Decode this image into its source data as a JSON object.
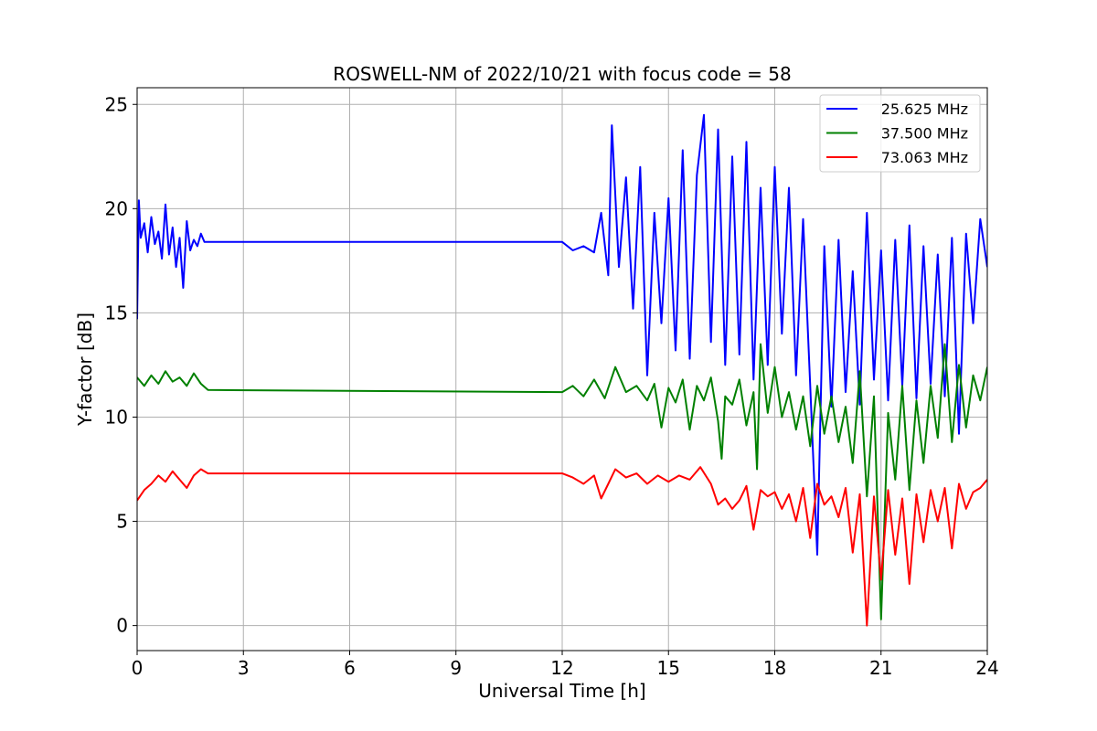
{
  "chart_data": {
    "type": "line",
    "title": "ROSWELL-NM of 2022/10/21 with focus code = 58",
    "xlabel": "Universal Time [h]",
    "ylabel": "Y-factor [dB]",
    "xlim": [
      0,
      24
    ],
    "ylim": [
      -1.2,
      25.8
    ],
    "xticks": [
      0,
      3,
      6,
      9,
      12,
      15,
      18,
      21,
      24
    ],
    "xtick_labels": [
      "0",
      "3",
      "6",
      "9",
      "12",
      "15",
      "18",
      "21",
      "24"
    ],
    "yticks": [
      0,
      5,
      10,
      15,
      20,
      25
    ],
    "ytick_labels": [
      "0",
      "5",
      "10",
      "15",
      "20",
      "25"
    ],
    "grid": true,
    "legend_position": "top-right",
    "series": [
      {
        "name": "25.625 MHz",
        "color": "#0000ff",
        "x": [
          0,
          0.05,
          0.1,
          0.2,
          0.3,
          0.4,
          0.5,
          0.6,
          0.7,
          0.8,
          0.9,
          1.0,
          1.1,
          1.2,
          1.3,
          1.4,
          1.5,
          1.6,
          1.7,
          1.8,
          1.9,
          2.0,
          12.0,
          12.3,
          12.6,
          12.9,
          13.1,
          13.3,
          13.4,
          13.6,
          13.8,
          14.0,
          14.2,
          14.4,
          14.6,
          14.8,
          15.0,
          15.2,
          15.4,
          15.6,
          15.8,
          16.0,
          16.2,
          16.4,
          16.6,
          16.8,
          17.0,
          17.2,
          17.4,
          17.6,
          17.8,
          18.0,
          18.2,
          18.4,
          18.6,
          18.8,
          19.0,
          19.2,
          19.4,
          19.6,
          19.8,
          20.0,
          20.2,
          20.4,
          20.6,
          20.8,
          21.0,
          21.2,
          21.4,
          21.6,
          21.8,
          22.0,
          22.2,
          22.4,
          22.6,
          22.8,
          23.0,
          23.2,
          23.4,
          23.6,
          23.8,
          24.0
        ],
        "y": [
          14.7,
          20.4,
          18.6,
          19.3,
          17.9,
          19.6,
          18.3,
          18.9,
          17.6,
          20.2,
          17.8,
          19.1,
          17.2,
          18.6,
          16.2,
          19.4,
          18.0,
          18.5,
          18.2,
          18.8,
          18.4,
          18.4,
          18.4,
          18.0,
          18.2,
          17.9,
          19.8,
          16.8,
          24.0,
          17.2,
          21.5,
          15.2,
          22.0,
          12.0,
          19.8,
          14.5,
          20.5,
          13.2,
          22.8,
          12.8,
          21.6,
          24.5,
          13.6,
          23.8,
          12.5,
          22.5,
          13.0,
          23.2,
          11.8,
          21.0,
          12.5,
          22.0,
          14.0,
          21.0,
          12.0,
          19.5,
          11.5,
          3.4,
          18.2,
          10.5,
          18.5,
          11.2,
          17.0,
          10.6,
          19.8,
          11.8,
          18.0,
          10.8,
          18.5,
          11.5,
          19.2,
          10.9,
          18.2,
          11.6,
          17.8,
          11.0,
          18.6,
          9.2,
          18.8,
          14.5,
          19.5,
          17.2
        ]
      },
      {
        "name": "37.500 MHz",
        "color": "#008000",
        "x": [
          0,
          0.2,
          0.4,
          0.6,
          0.8,
          1.0,
          1.2,
          1.4,
          1.6,
          1.8,
          2.0,
          12.0,
          12.3,
          12.6,
          12.9,
          13.2,
          13.5,
          13.8,
          14.1,
          14.4,
          14.6,
          14.8,
          15.0,
          15.2,
          15.4,
          15.6,
          15.8,
          16.0,
          16.2,
          16.4,
          16.5,
          16.6,
          16.8,
          17.0,
          17.2,
          17.4,
          17.5,
          17.6,
          17.8,
          18.0,
          18.2,
          18.4,
          18.6,
          18.8,
          19.0,
          19.2,
          19.4,
          19.6,
          19.8,
          20.0,
          20.2,
          20.4,
          20.6,
          20.8,
          21.0,
          21.2,
          21.4,
          21.6,
          21.8,
          22.0,
          22.2,
          22.4,
          22.6,
          22.8,
          23.0,
          23.2,
          23.4,
          23.6,
          23.8,
          24.0
        ],
        "y": [
          11.9,
          11.5,
          12.0,
          11.6,
          12.2,
          11.7,
          11.9,
          11.5,
          12.1,
          11.6,
          11.3,
          11.2,
          11.5,
          11.0,
          11.8,
          10.9,
          12.4,
          11.2,
          11.5,
          10.8,
          11.6,
          9.5,
          11.4,
          10.7,
          11.8,
          9.4,
          11.5,
          10.8,
          11.9,
          9.8,
          8.0,
          11.0,
          10.6,
          11.8,
          9.6,
          11.2,
          7.5,
          13.5,
          10.2,
          12.4,
          10.0,
          11.2,
          9.4,
          11.0,
          8.6,
          11.5,
          9.2,
          11.0,
          8.8,
          10.5,
          7.8,
          12.2,
          6.2,
          11.0,
          0.3,
          10.2,
          7.0,
          11.5,
          6.5,
          10.8,
          7.8,
          11.5,
          9.0,
          13.5,
          8.8,
          12.5,
          9.5,
          12.0,
          10.8,
          12.4
        ]
      },
      {
        "name": "73.063 MHz",
        "color": "#ff0000",
        "x": [
          0,
          0.2,
          0.4,
          0.6,
          0.8,
          1.0,
          1.2,
          1.4,
          1.6,
          1.8,
          2.0,
          12.0,
          12.3,
          12.6,
          12.9,
          13.1,
          13.3,
          13.5,
          13.8,
          14.1,
          14.4,
          14.7,
          15.0,
          15.3,
          15.6,
          15.9,
          16.2,
          16.4,
          16.6,
          16.8,
          17.0,
          17.2,
          17.4,
          17.6,
          17.8,
          18.0,
          18.2,
          18.4,
          18.6,
          18.8,
          19.0,
          19.2,
          19.4,
          19.6,
          19.8,
          20.0,
          20.2,
          20.4,
          20.6,
          20.8,
          21.0,
          21.2,
          21.4,
          21.6,
          21.8,
          22.0,
          22.2,
          22.4,
          22.6,
          22.8,
          23.0,
          23.2,
          23.4,
          23.6,
          23.8,
          24.0
        ],
        "y": [
          6.0,
          6.5,
          6.8,
          7.2,
          6.9,
          7.4,
          7.0,
          6.6,
          7.2,
          7.5,
          7.3,
          7.3,
          7.1,
          6.8,
          7.2,
          6.1,
          6.8,
          7.5,
          7.1,
          7.3,
          6.8,
          7.2,
          6.9,
          7.2,
          7.0,
          7.6,
          6.8,
          5.8,
          6.1,
          5.6,
          6.0,
          6.7,
          4.6,
          6.5,
          6.2,
          6.4,
          5.6,
          6.3,
          5.0,
          6.6,
          4.2,
          6.8,
          5.8,
          6.2,
          5.2,
          6.6,
          3.5,
          6.3,
          0.0,
          6.2,
          2.2,
          6.5,
          3.4,
          6.1,
          2.0,
          6.3,
          4.0,
          6.5,
          5.0,
          6.6,
          3.7,
          6.8,
          5.6,
          6.4,
          6.6,
          7.0
        ]
      }
    ]
  }
}
